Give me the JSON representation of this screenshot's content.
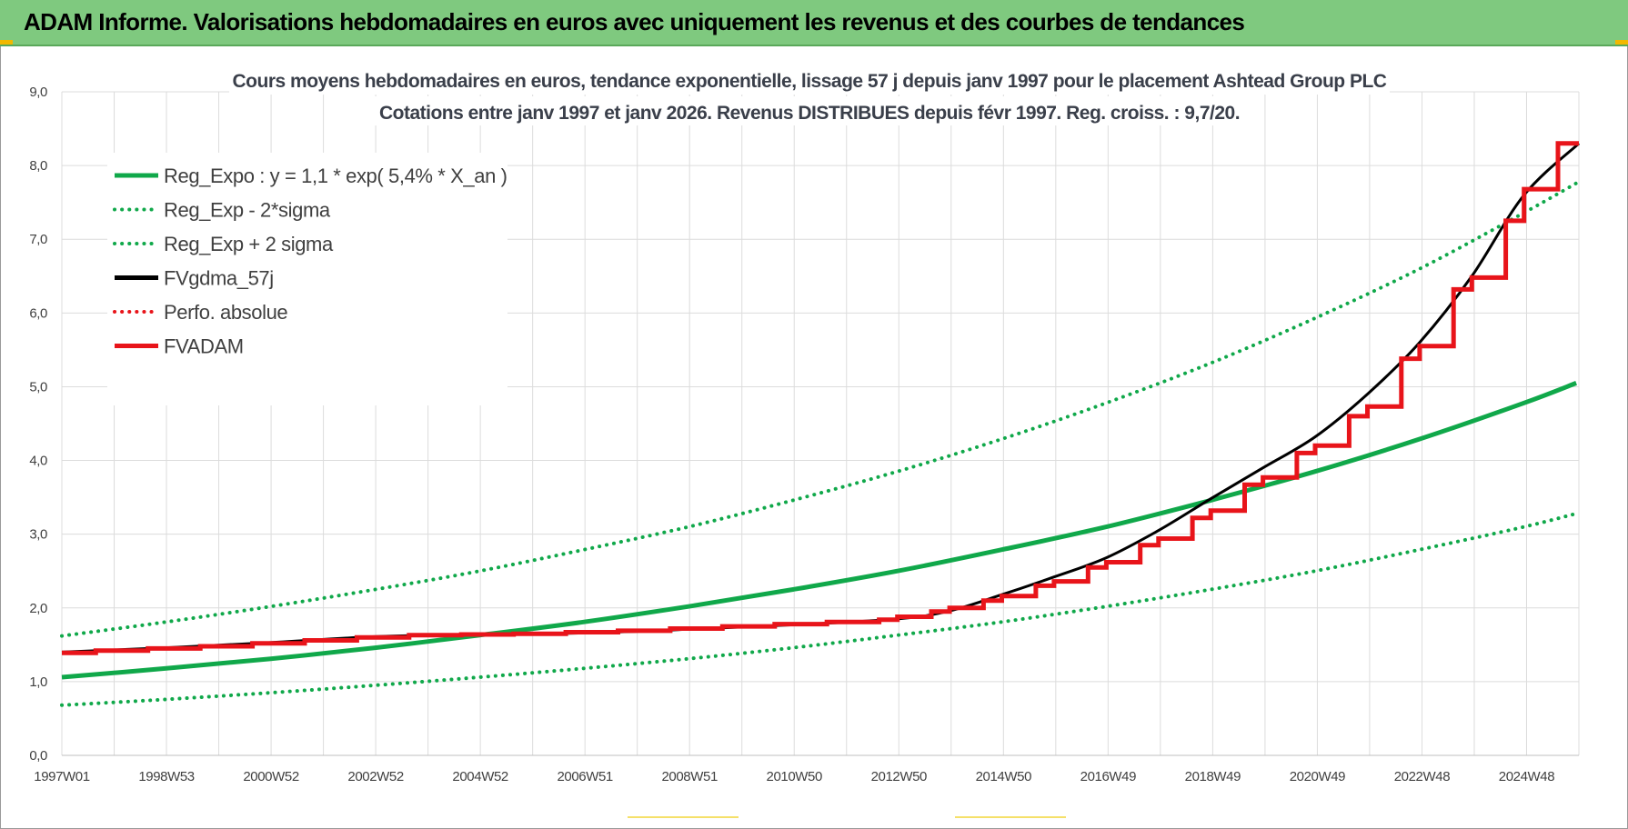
{
  "header": {
    "title": "ADAM Informe. Valorisations hebdomadaires en euros avec uniquement les revenus et des courbes de tendances"
  },
  "colors": {
    "header_bg": "#7fc97f",
    "reg_green": "#10a84a",
    "black": "#000000",
    "red": "#e8141a"
  },
  "chart_data": {
    "type": "line",
    "title": "Cours moyens hebdomadaires en euros, tendance exponentielle, lissage 57 j depuis janv 1997 pour le placement Ashtead Group PLC",
    "subtitle": "Cotations entre janv 1997 et janv 2026. Revenus DISTRIBUES depuis févr 1997. Reg. croiss. : 9,7/20.",
    "x_tick_labels": [
      "1997W01",
      "1998W53",
      "2000W52",
      "2002W52",
      "2004W52",
      "2006W51",
      "2008W51",
      "2010W50",
      "2012W50",
      "2014W50",
      "2016W49",
      "2018W49",
      "2020W49",
      "2022W48",
      "2024W48"
    ],
    "x_range_years": [
      1997.0,
      2026.05
    ],
    "y_tick_labels": [
      "0,0",
      "1,0",
      "2,0",
      "3,0",
      "4,0",
      "5,0",
      "6,0",
      "7,0",
      "8,0",
      "9,0"
    ],
    "ylim": [
      0,
      9
    ],
    "grid": true,
    "legend_position": "top-left",
    "series": [
      {
        "name": "Reg_Expo : y = 1,1 * exp( 5,4% *  X_an )",
        "style": "solid",
        "color": "#10a84a",
        "x": [
          1997,
          1999,
          2001,
          2003,
          2005,
          2007,
          2009,
          2011,
          2013,
          2015,
          2017,
          2019,
          2021,
          2023,
          2025,
          2026
        ],
        "y": [
          1.06,
          1.18,
          1.31,
          1.46,
          1.63,
          1.81,
          2.02,
          2.25,
          2.5,
          2.79,
          3.1,
          3.46,
          3.85,
          4.29,
          4.78,
          5.05
        ]
      },
      {
        "name": "Reg_Exp - 2*sigma",
        "style": "dotted",
        "color": "#10a84a",
        "x": [
          1997,
          1999,
          2001,
          2003,
          2005,
          2007,
          2009,
          2011,
          2013,
          2015,
          2017,
          2019,
          2021,
          2023,
          2025,
          2026
        ],
        "y": [
          0.68,
          0.76,
          0.85,
          0.95,
          1.06,
          1.18,
          1.31,
          1.46,
          1.63,
          1.81,
          2.02,
          2.25,
          2.5,
          2.79,
          3.1,
          3.28
        ]
      },
      {
        "name": "Reg_Exp + 2 sigma",
        "style": "dotted",
        "color": "#10a84a",
        "x": [
          1997,
          1999,
          2001,
          2003,
          2005,
          2007,
          2009,
          2011,
          2013,
          2015,
          2017,
          2019,
          2021,
          2023,
          2025,
          2026
        ],
        "y": [
          1.62,
          1.81,
          2.02,
          2.25,
          2.5,
          2.79,
          3.1,
          3.46,
          3.85,
          4.29,
          4.78,
          5.32,
          5.93,
          6.6,
          7.36,
          7.76
        ]
      },
      {
        "name": "FVgdma_57j",
        "style": "solid",
        "color": "#000000",
        "x": [
          1997.0,
          1999.0,
          2001.0,
          2003.0,
          2005.0,
          2007.0,
          2009.0,
          2011.0,
          2013.0,
          2014.0,
          2015.0,
          2016.0,
          2017.0,
          2018.0,
          2019.0,
          2020.0,
          2021.0,
          2022.0,
          2023.0,
          2024.0,
          2025.0,
          2026.05
        ],
        "y": [
          1.4,
          1.46,
          1.53,
          1.61,
          1.64,
          1.66,
          1.71,
          1.77,
          1.85,
          1.96,
          2.18,
          2.42,
          2.68,
          3.05,
          3.48,
          3.9,
          4.32,
          4.9,
          5.6,
          6.5,
          7.6,
          8.3
        ]
      },
      {
        "name": "Perfo. absolue",
        "style": "dotted",
        "color": "#e8141a",
        "x": [],
        "y": []
      },
      {
        "name": "FVADAM",
        "style": "step",
        "color": "#e8141a",
        "x": [
          1997.0,
          1997.65,
          1998.65,
          1999.65,
          2000.65,
          2001.65,
          2002.65,
          2003.65,
          2004.65,
          2005.65,
          2006.65,
          2007.65,
          2008.65,
          2009.65,
          2010.65,
          2011.65,
          2012.65,
          2013.0,
          2013.65,
          2014.0,
          2014.65,
          2015.0,
          2015.65,
          2016.0,
          2016.65,
          2017.0,
          2017.65,
          2018.0,
          2018.65,
          2019.0,
          2019.65,
          2020.0,
          2020.65,
          2021.0,
          2021.65,
          2022.0,
          2022.65,
          2023.0,
          2023.65,
          2024.0,
          2024.65,
          2025.0,
          2025.65,
          2026.05
        ],
        "y": [
          1.39,
          1.42,
          1.45,
          1.48,
          1.52,
          1.56,
          1.6,
          1.63,
          1.64,
          1.65,
          1.67,
          1.69,
          1.72,
          1.75,
          1.78,
          1.81,
          1.84,
          1.88,
          1.95,
          2.0,
          2.1,
          2.16,
          2.3,
          2.36,
          2.55,
          2.62,
          2.85,
          2.94,
          3.22,
          3.32,
          3.67,
          3.77,
          4.1,
          4.2,
          4.6,
          4.73,
          5.38,
          5.55,
          6.32,
          6.48,
          7.25,
          7.68,
          8.3,
          8.3
        ]
      }
    ]
  }
}
